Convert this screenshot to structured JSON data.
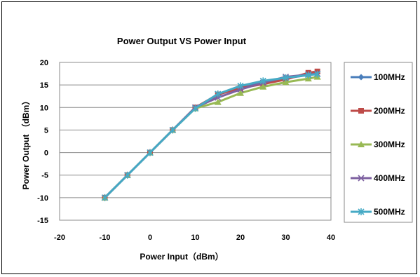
{
  "chart_data": {
    "type": "line",
    "title": "Power Output VS Power Input",
    "xlabel": "Power Input（dBm）",
    "ylabel": "Power Output （dBm）",
    "xlim": [
      -20,
      40
    ],
    "ylim": [
      -15,
      20
    ],
    "x_ticks": [
      -20,
      -10,
      0,
      10,
      20,
      30,
      40
    ],
    "y_ticks": [
      -15,
      -10,
      -5,
      0,
      5,
      10,
      15,
      20
    ],
    "grid": "horizontal",
    "legend_position": "right",
    "series": [
      {
        "name": "100MHz",
        "color": "#4a7ebb",
        "marker": "diamond",
        "x": [
          -10,
          -5,
          0,
          5,
          10,
          15,
          20,
          25,
          30,
          35,
          37
        ],
        "y": [
          -10,
          -5,
          0,
          5,
          10,
          12.8,
          14.5,
          15.5,
          16.5,
          17.2,
          17.6
        ]
      },
      {
        "name": "200MHz",
        "color": "#be4b48",
        "marker": "square",
        "x": [
          -10,
          -5,
          0,
          5,
          10,
          15,
          20,
          25,
          30,
          35,
          37
        ],
        "y": [
          -10,
          -5,
          0,
          5,
          10,
          12.9,
          14.3,
          15.2,
          16.2,
          17.7,
          18.0
        ]
      },
      {
        "name": "300MHz",
        "color": "#98b954",
        "marker": "triangle",
        "x": [
          -10,
          -5,
          0,
          5,
          10,
          15,
          20,
          25,
          30,
          35,
          37
        ],
        "y": [
          -10,
          -5,
          0,
          5,
          9.8,
          11.2,
          13.2,
          14.6,
          15.6,
          16.4,
          16.8
        ]
      },
      {
        "name": "400MHz",
        "color": "#7d60a0",
        "marker": "x",
        "x": [
          -10,
          -5,
          0,
          5,
          10,
          15,
          20,
          25,
          30,
          35,
          37
        ],
        "y": [
          -10,
          -5,
          0,
          5,
          10,
          12.2,
          14.0,
          15.5,
          16.8,
          17.3,
          17.5
        ]
      },
      {
        "name": "500MHz",
        "color": "#46aac5",
        "marker": "star",
        "x": [
          -10,
          -5,
          0,
          5,
          10,
          15,
          20,
          25,
          30,
          35,
          37
        ],
        "y": [
          -10,
          -5,
          0,
          5,
          9.8,
          13.0,
          14.8,
          15.9,
          16.6,
          17.2,
          17.4
        ]
      }
    ]
  }
}
